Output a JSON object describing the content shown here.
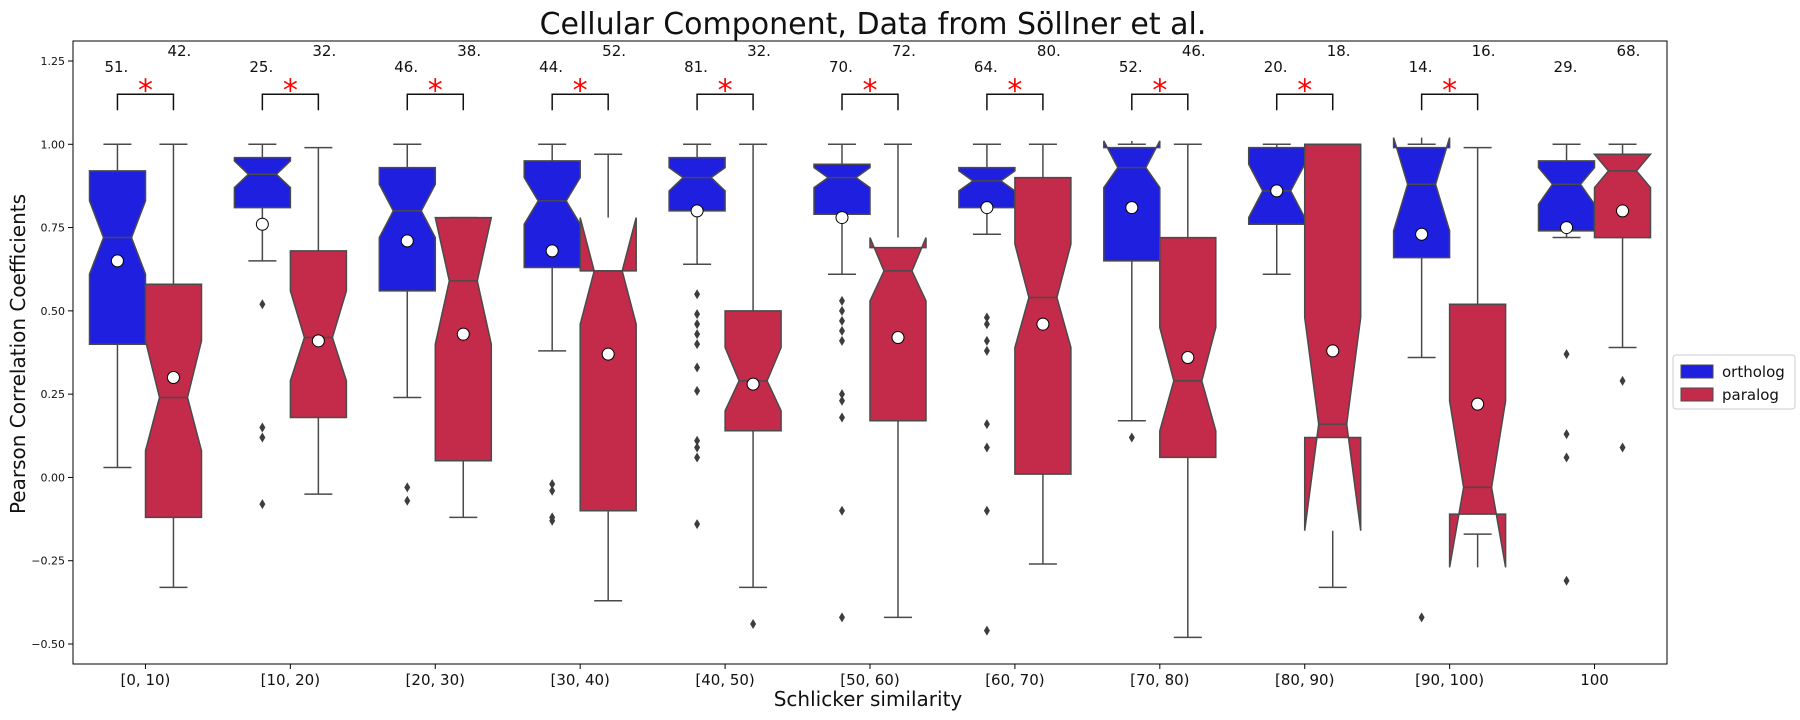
{
  "chart_data": {
    "type": "boxplot",
    "title": "Cellular Component, Data from Söllner et al.",
    "xlabel": "Schlicker similarity",
    "ylabel": "Pearson Correlation Coefficients",
    "ylim": [
      -0.56,
      1.31
    ],
    "yticks": [
      -0.5,
      -0.25,
      0.0,
      0.25,
      0.5,
      0.75,
      1.0,
      1.25
    ],
    "ytick_labels": [
      "−0.50",
      "−0.25",
      "0.00",
      "0.25",
      "0.50",
      "0.75",
      "1.00",
      "1.25"
    ],
    "categories": [
      "[0, 10)",
      "[10, 20)",
      "[20, 30)",
      "[30, 40)",
      "[40, 50)",
      "[50, 60)",
      "[60, 70)",
      "[70, 80)",
      "[80, 90)",
      "[90, 100)",
      "100"
    ],
    "legend": {
      "placement": "right"
    },
    "significance_marker": "*",
    "colors": {
      "ortholog": "#1f1fe0",
      "paralog": "#c42b4a",
      "edge": "#4a4a4a",
      "significance": "#ff0000"
    },
    "series": [
      {
        "name": "ortholog",
        "counts": [
          "51.",
          "25.",
          "46.",
          "44.",
          "81.",
          "70.",
          "64.",
          "52.",
          "20.",
          "14.",
          "29."
        ],
        "boxes": [
          {
            "whislo": 0.03,
            "q1": 0.4,
            "med": 0.72,
            "q3": 0.92,
            "whishi": 1.0,
            "notchlo": 0.61,
            "notchhi": 0.83,
            "mean": 0.65,
            "fliers": []
          },
          {
            "whislo": 0.65,
            "q1": 0.81,
            "med": 0.91,
            "q3": 0.96,
            "whishi": 1.0,
            "notchlo": 0.87,
            "notchhi": 0.95,
            "mean": 0.76,
            "fliers": [
              0.52,
              0.15,
              0.12,
              -0.08
            ]
          },
          {
            "whislo": 0.24,
            "q1": 0.56,
            "med": 0.8,
            "q3": 0.93,
            "whishi": 1.0,
            "notchlo": 0.72,
            "notchhi": 0.88,
            "mean": 0.71,
            "fliers": [
              -0.03,
              -0.07
            ]
          },
          {
            "whislo": 0.38,
            "q1": 0.63,
            "med": 0.83,
            "q3": 0.95,
            "whishi": 1.0,
            "notchlo": 0.76,
            "notchhi": 0.9,
            "mean": 0.68,
            "fliers": [
              -0.02,
              -0.04,
              -0.12,
              -0.13
            ]
          },
          {
            "whislo": 0.64,
            "q1": 0.8,
            "med": 0.9,
            "q3": 0.96,
            "whishi": 1.0,
            "notchlo": 0.86,
            "notchhi": 0.93,
            "mean": 0.8,
            "fliers": [
              0.55,
              0.49,
              0.46,
              0.43,
              0.4,
              0.33,
              0.26,
              0.11,
              0.09,
              0.06,
              -0.14
            ]
          },
          {
            "whislo": 0.61,
            "q1": 0.79,
            "med": 0.9,
            "q3": 0.94,
            "whishi": 1.0,
            "notchlo": 0.87,
            "notchhi": 0.93,
            "mean": 0.78,
            "fliers": [
              0.53,
              0.5,
              0.47,
              0.44,
              0.41,
              0.25,
              0.23,
              0.18,
              -0.1,
              -0.42
            ]
          },
          {
            "whislo": 0.73,
            "q1": 0.81,
            "med": 0.89,
            "q3": 0.93,
            "whishi": 1.0,
            "notchlo": 0.86,
            "notchhi": 0.92,
            "mean": 0.81,
            "fliers": [
              0.48,
              0.46,
              0.41,
              0.38,
              0.16,
              0.09,
              -0.1,
              -0.46
            ]
          },
          {
            "whislo": 0.17,
            "q1": 0.65,
            "med": 0.93,
            "q3": 0.99,
            "whishi": 1.0,
            "notchlo": 0.87,
            "notchhi": 1.01,
            "mean": 0.81,
            "fliers": [
              0.12
            ]
          },
          {
            "whislo": 0.61,
            "q1": 0.76,
            "med": 0.86,
            "q3": 0.99,
            "whishi": 1.0,
            "notchlo": 0.78,
            "notchhi": 0.94,
            "mean": 0.86,
            "fliers": []
          },
          {
            "whislo": 0.36,
            "q1": 0.66,
            "med": 0.88,
            "q3": 0.99,
            "whishi": 1.0,
            "notchlo": 0.74,
            "notchhi": 1.02,
            "mean": 0.73,
            "fliers": [
              -0.42
            ]
          },
          {
            "whislo": 0.72,
            "q1": 0.74,
            "med": 0.88,
            "q3": 0.95,
            "whishi": 1.0,
            "notchlo": 0.82,
            "notchhi": 0.93,
            "mean": 0.75,
            "fliers": [
              0.37,
              0.13,
              0.06,
              -0.31
            ]
          }
        ]
      },
      {
        "name": "paralog",
        "counts": [
          "42.",
          "32.",
          "38.",
          "52.",
          "32.",
          "72.",
          "80.",
          "46.",
          "18.",
          "16.",
          "68."
        ],
        "boxes": [
          {
            "whislo": -0.33,
            "q1": -0.12,
            "med": 0.24,
            "q3": 0.58,
            "whishi": 1.0,
            "notchlo": 0.08,
            "notchhi": 0.41,
            "mean": 0.3,
            "fliers": []
          },
          {
            "whislo": -0.05,
            "q1": 0.18,
            "med": 0.42,
            "q3": 0.68,
            "whishi": 0.99,
            "notchlo": 0.29,
            "notchhi": 0.56,
            "mean": 0.41,
            "fliers": []
          },
          {
            "whislo": -0.12,
            "q1": 0.05,
            "med": 0.59,
            "q3": 0.78,
            "whishi": 0.78,
            "notchlo": 0.4,
            "notchhi": 0.78,
            "mean": 0.43,
            "fliers": []
          },
          {
            "whislo": -0.37,
            "q1": -0.1,
            "med": 0.62,
            "q3": 0.62,
            "whishi": 0.97,
            "notchlo": 0.46,
            "notchhi": 0.78,
            "mean": 0.37,
            "fliers": []
          },
          {
            "whislo": -0.33,
            "q1": 0.14,
            "med": 0.29,
            "q3": 0.5,
            "whishi": 1.0,
            "notchlo": 0.2,
            "notchhi": 0.39,
            "mean": 0.28,
            "fliers": [
              -0.44
            ]
          },
          {
            "whislo": -0.42,
            "q1": 0.17,
            "med": 0.62,
            "q3": 0.69,
            "whishi": 1.0,
            "notchlo": 0.53,
            "notchhi": 0.72,
            "mean": 0.42,
            "fliers": []
          },
          {
            "whislo": -0.26,
            "q1": 0.01,
            "med": 0.54,
            "q3": 0.9,
            "whishi": 1.0,
            "notchlo": 0.39,
            "notchhi": 0.7,
            "mean": 0.46,
            "fliers": []
          },
          {
            "whislo": -0.48,
            "q1": 0.06,
            "med": 0.29,
            "q3": 0.72,
            "whishi": 1.0,
            "notchlo": 0.14,
            "notchhi": 0.45,
            "mean": 0.36,
            "fliers": []
          },
          {
            "whislo": -0.33,
            "q1": 0.12,
            "med": 0.16,
            "q3": 1.0,
            "whishi": 1.0,
            "notchlo": -0.16,
            "notchhi": 0.48,
            "mean": 0.38,
            "fliers": []
          },
          {
            "whislo": -0.17,
            "q1": -0.11,
            "med": -0.03,
            "q3": 0.52,
            "whishi": 0.99,
            "notchlo": -0.27,
            "notchhi": 0.23,
            "mean": 0.22,
            "fliers": []
          },
          {
            "whislo": 0.39,
            "q1": 0.72,
            "med": 0.92,
            "q3": 0.97,
            "whishi": 1.0,
            "notchlo": 0.87,
            "notchhi": 0.97,
            "mean": 0.8,
            "fliers": [
              0.29,
              0.09
            ]
          }
        ]
      }
    ],
    "significance": [
      true,
      true,
      true,
      true,
      true,
      true,
      true,
      true,
      true,
      true,
      false
    ]
  }
}
